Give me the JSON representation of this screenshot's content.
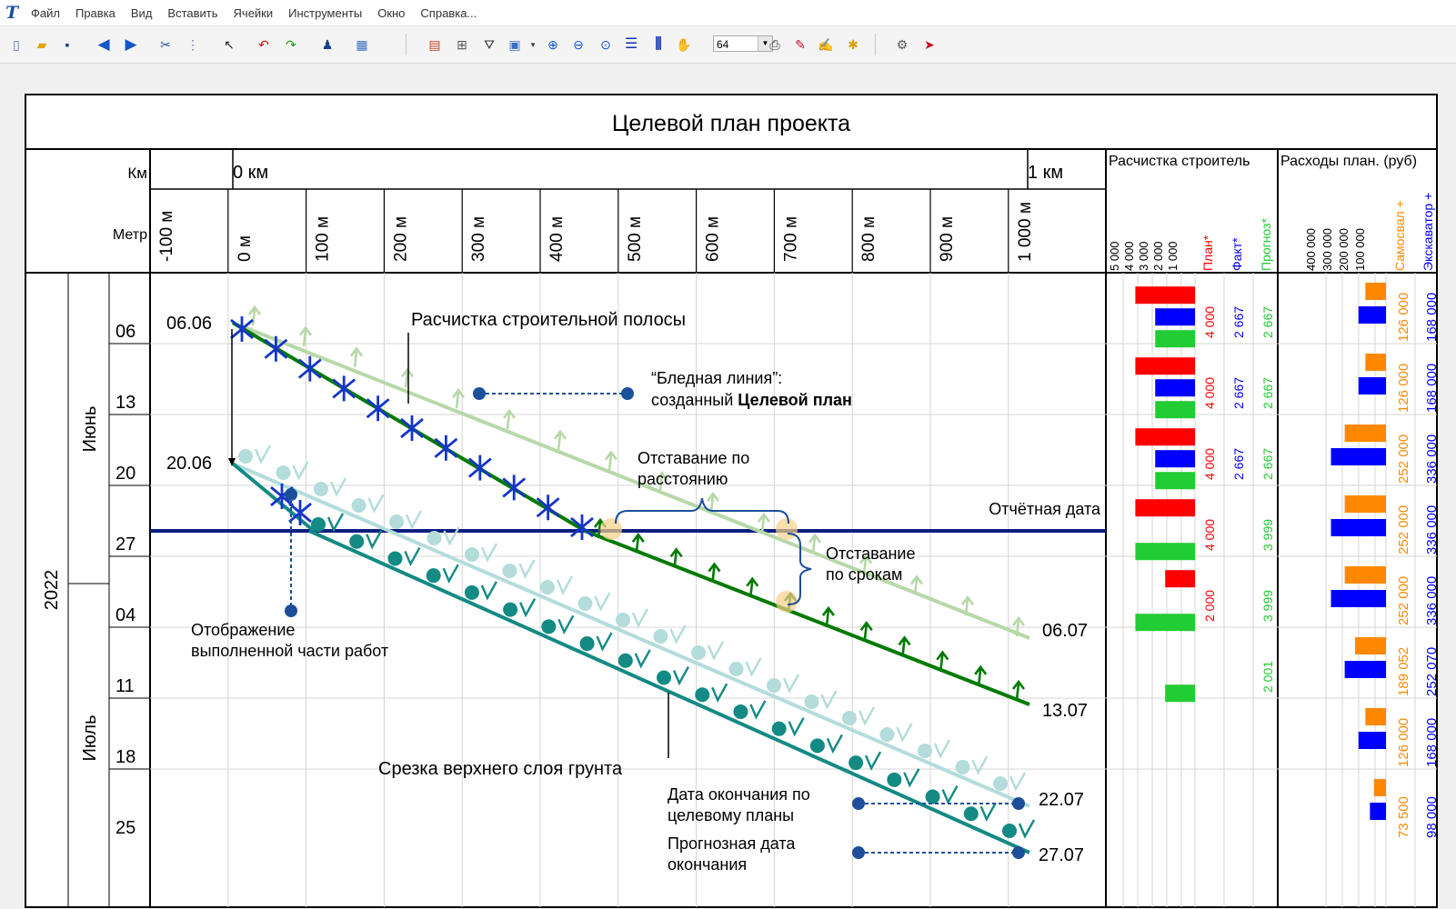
{
  "menu": {
    "items": [
      "Файл",
      "Правка",
      "Вид",
      "Вставить",
      "Ячейки",
      "Инструменты",
      "Окно",
      "Справка..."
    ]
  },
  "toolbar": {
    "zoom_value": "64"
  },
  "chart": {
    "title": "Целевой план проекта",
    "km_label": "Км",
    "meter_label": "Метр",
    "km_ticks": [
      "0 км",
      "1 км"
    ],
    "meter_ticks": [
      "-100 м",
      "0 м",
      "100 м",
      "200 м",
      "300 м",
      "400 м",
      "500 м",
      "600 м",
      "700 м",
      "800 м",
      "900 м",
      "1 000 м"
    ],
    "year": "2022",
    "months": [
      "Июнь",
      "Июль"
    ],
    "weeks": [
      "06",
      "13",
      "20",
      "27",
      "04",
      "11",
      "18",
      "25"
    ],
    "report_date_label": "Отчётная дата",
    "activities": {
      "clearing": {
        "name": "Расчистка строительной полосы",
        "start_label": "06.06",
        "target_end_label": "06.07",
        "end_label": "13.07"
      },
      "topsoil": {
        "name": "Срезка верхнего слоя грунта",
        "start_label": "20.06",
        "target_end_label": "22.07",
        "end_label": "27.07"
      }
    },
    "callouts": {
      "pale_line_1": "“Бледная линия”:",
      "pale_line_2_plain": "созданный ",
      "pale_line_2_bold": "Целевой план",
      "distance_lag": [
        "Отставание по",
        "расстоянию"
      ],
      "time_lag": [
        "Отставание",
        "по срокам"
      ],
      "completed_part": [
        "Отображение",
        "выполненной части работ"
      ],
      "target_end_date": [
        "Дата окончания по",
        "целевому планы"
      ],
      "forecast_end_date": [
        "Прогнозная дата",
        "окончания"
      ]
    },
    "panel1": {
      "title": "Расчистка строитель",
      "scale_labels": [
        "5 000",
        "4 000",
        "3 000",
        "2 000",
        "1 000"
      ],
      "col_plan": "План*",
      "col_fact": "Факт*",
      "col_forecast": "Прогноз*"
    },
    "panel2": {
      "title": "Расходы план. (руб)",
      "scale_labels": [
        "400 000",
        "300 000",
        "200 000",
        "100 000"
      ],
      "col_dump": "Самосвал +",
      "col_exc": "Экскаватор +"
    },
    "colors": {
      "plan": "#ff0000",
      "fact": "#0000ff",
      "forecast": "#22cc33",
      "dump": "#ff8800",
      "excavator": "#0000ff",
      "clearing_line": "#007a00",
      "clearing_target": "#b7d8a8",
      "topsoil_line": "#138a84",
      "topsoil_target": "#b3dcdb",
      "report_line": "#0d1e80"
    }
  },
  "chart_data": {
    "type": "table",
    "weeks": [
      "06",
      "13",
      "20",
      "27",
      "04",
      "11",
      "18",
      "25"
    ],
    "clearing_plan": [
      4000,
      4000,
      4000,
      4000,
      2000,
      null,
      null,
      null
    ],
    "clearing_plan_labels": [
      "4 000",
      "4 000",
      "4 000",
      "4 000",
      "2 000",
      "",
      "",
      ""
    ],
    "clearing_fact": [
      2667,
      2667,
      2667,
      null,
      null,
      null,
      null,
      null
    ],
    "clearing_fact_labels": [
      "2 667",
      "2 667",
      "2 667",
      "",
      "",
      "",
      "",
      ""
    ],
    "clearing_forecast": [
      2667,
      2667,
      2667,
      3999,
      3999,
      2001,
      null,
      null
    ],
    "clearing_forecast_labels": [
      "2 667",
      "2 667",
      "2 667",
      "3 999",
      "3 999",
      "2 001",
      "",
      ""
    ],
    "cost_dump": [
      126000,
      126000,
      252000,
      252000,
      252000,
      189052,
      126000,
      73500
    ],
    "cost_dump_labels": [
      "126 000",
      "126 000",
      "252 000",
      "252 000",
      "252 000",
      "189 052",
      "126 000",
      "73 500"
    ],
    "cost_excavator": [
      168000,
      168000,
      336000,
      336000,
      336000,
      252070,
      168000,
      98000
    ],
    "cost_excavator_labels": [
      "168 000",
      "168 000",
      "336 000",
      "336 000",
      "336 000",
      "252 070",
      "168 000",
      "98 000"
    ]
  }
}
